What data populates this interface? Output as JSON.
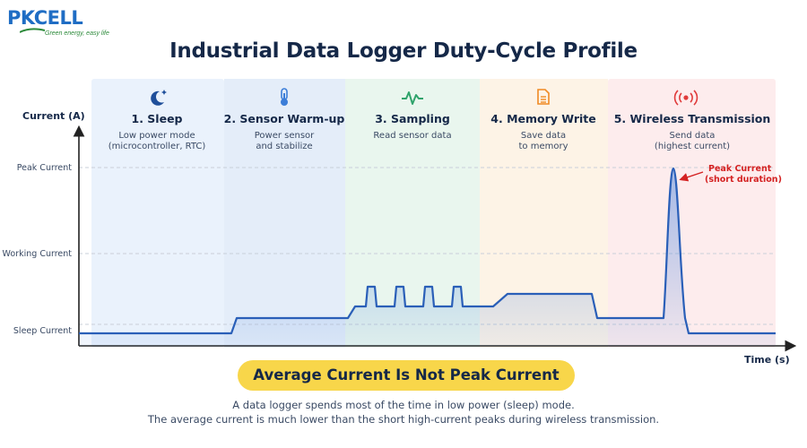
{
  "logo": {
    "brand": "PKCELL",
    "tagline": "Green energy, easy life"
  },
  "title": "Industrial Data Logger Duty-Cycle Profile",
  "axes": {
    "y_label": "Current (A)",
    "x_label": "Time (s)",
    "levels": [
      {
        "name": "sleep",
        "label": "Sleep Current"
      },
      {
        "name": "working",
        "label": "Working Current"
      },
      {
        "name": "peak",
        "label": "Peak Current"
      }
    ]
  },
  "phases": [
    {
      "title": "1. Sleep",
      "desc": [
        "Low power mode",
        "(microcontroller, RTC)"
      ],
      "icon": "moon-icon",
      "color": "#3b7dd8",
      "tint": "#eaf2fc"
    },
    {
      "title": "2. Sensor Warm-up",
      "desc": [
        "Power sensor",
        "and stabilize"
      ],
      "icon": "thermometer-icon",
      "color": "#3b7dd8",
      "tint": "#e6effa"
    },
    {
      "title": "3. Sampling",
      "desc": [
        "Read sensor data"
      ],
      "icon": "waveform-icon",
      "color": "#2fa36b",
      "tint": "#e9f6ee"
    },
    {
      "title": "4. Memory Write",
      "desc": [
        "Save data",
        "to memory"
      ],
      "icon": "document-icon",
      "color": "#f08a24",
      "tint": "#fdf3e6"
    },
    {
      "title": "5. Wireless Transmission",
      "desc": [
        "Send data",
        "(highest current)"
      ],
      "icon": "wireless-icon",
      "color": "#e03b3b",
      "tint": "#fdeced"
    }
  ],
  "annotation": {
    "lines": [
      "Peak Current",
      "(short duration)"
    ],
    "color": "#d42222"
  },
  "banner": "Average Current Is Not Peak Current",
  "caption": [
    "A data logger spends most of the time in low power (sleep) mode.",
    "The average current is much lower than the short high-current peaks during wireless transmission."
  ],
  "colors": {
    "curve": "#2a5fb8",
    "banner": "#f8d64a"
  }
}
